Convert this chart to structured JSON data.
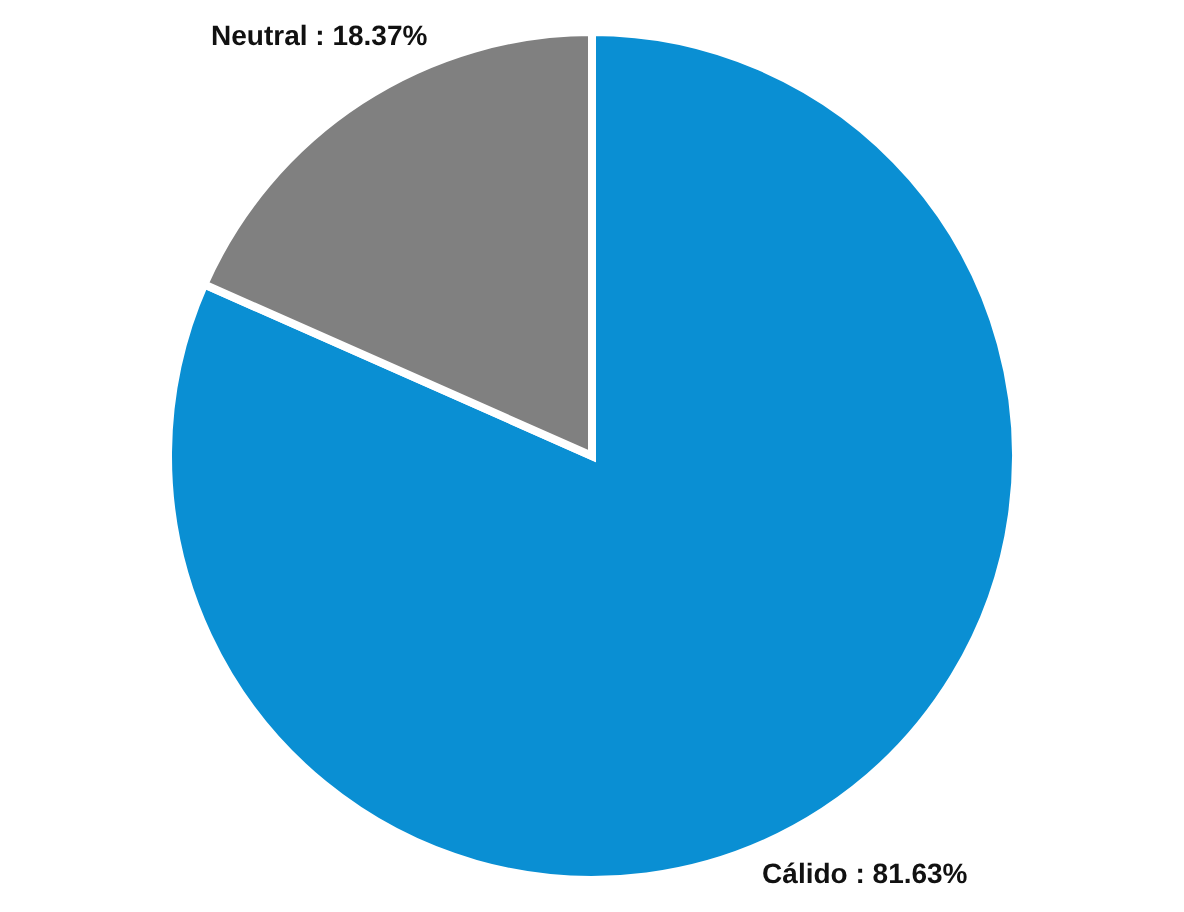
{
  "chart_data": {
    "type": "pie",
    "categories": [
      "Cálido",
      "Neutral"
    ],
    "values": [
      81.63,
      18.37
    ],
    "colors": [
      "#0a8fd3",
      "#808080"
    ],
    "value_labels": [
      "81.63%",
      "18.37%"
    ]
  }
}
